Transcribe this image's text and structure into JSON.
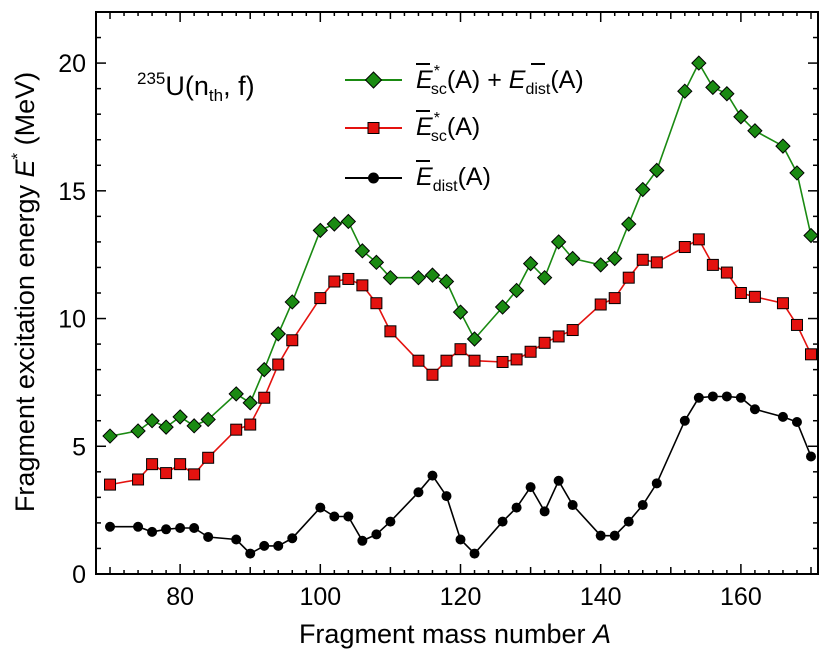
{
  "chart_data": {
    "type": "line",
    "annotation": {
      "mass": "235",
      "symbol": "U(n",
      "sub": "th",
      "rest": ", f)"
    },
    "xlabel": {
      "text": "Fragment mass number ",
      "italic": "A"
    },
    "ylabel": {
      "text": "Fragment excitation energy ",
      "italic": "E",
      "sup": "*",
      "unit": " (MeV)"
    },
    "xlim": [
      68,
      171
    ],
    "ylim": [
      0,
      22
    ],
    "xticks": [
      80,
      100,
      120,
      140,
      160
    ],
    "yticks": [
      0,
      5,
      10,
      15,
      20
    ],
    "series": [
      {
        "name": "E_sc(A) + E_dist(A)",
        "legend": {
          "e1": "E",
          "sup1": "*",
          "sub1": "sc",
          "mid": "(A) + ",
          "e2": "E",
          "sub2": "dist",
          "end": "(A)"
        },
        "color": "#1a8a12",
        "marker": "diamond",
        "x": [
          70,
          74,
          76,
          78,
          80,
          82,
          84,
          88,
          90,
          92,
          94,
          96,
          100,
          102,
          104,
          106,
          108,
          110,
          114,
          116,
          118,
          120,
          122,
          126,
          128,
          130,
          132,
          134,
          136,
          140,
          142,
          144,
          146,
          148,
          152,
          154,
          156,
          158,
          160,
          162,
          166,
          168,
          170
        ],
        "values": [
          5.4,
          5.6,
          6.0,
          5.75,
          6.15,
          5.8,
          6.05,
          7.05,
          6.7,
          8.0,
          9.4,
          10.65,
          13.45,
          13.7,
          13.8,
          12.65,
          12.2,
          11.6,
          11.6,
          11.7,
          11.45,
          10.25,
          9.2,
          10.45,
          11.1,
          12.15,
          11.6,
          13.0,
          12.35,
          12.1,
          12.35,
          13.7,
          15.05,
          15.8,
          18.9,
          20.0,
          19.05,
          18.8,
          17.9,
          17.35,
          16.75,
          15.7,
          13.25
        ]
      },
      {
        "name": "E_sc(A)",
        "legend": {
          "e1": "E",
          "sup1": "*",
          "sub1": "sc",
          "end": "(A)"
        },
        "color": "#e4120f",
        "marker": "square",
        "x": [
          70,
          74,
          76,
          78,
          80,
          82,
          84,
          88,
          90,
          92,
          94,
          96,
          100,
          102,
          104,
          106,
          108,
          110,
          114,
          116,
          118,
          120,
          122,
          126,
          128,
          130,
          132,
          134,
          136,
          140,
          142,
          144,
          146,
          148,
          152,
          154,
          156,
          158,
          160,
          162,
          166,
          168,
          170
        ],
        "values": [
          3.5,
          3.7,
          4.3,
          3.95,
          4.3,
          3.9,
          4.55,
          5.65,
          5.85,
          6.9,
          8.2,
          9.15,
          10.8,
          11.45,
          11.55,
          11.3,
          10.6,
          9.5,
          8.35,
          7.8,
          8.35,
          8.8,
          8.35,
          8.3,
          8.4,
          8.7,
          9.05,
          9.3,
          9.55,
          10.55,
          10.8,
          11.6,
          12.3,
          12.2,
          12.8,
          13.1,
          12.1,
          11.8,
          11.0,
          10.85,
          10.6,
          9.75,
          8.6
        ]
      },
      {
        "name": "E_dist(A)",
        "legend": {
          "e1": "E",
          "sub1": "dist",
          "end": "(A)"
        },
        "color": "#000000",
        "marker": "circle",
        "x": [
          70,
          74,
          76,
          78,
          80,
          82,
          84,
          88,
          90,
          92,
          94,
          96,
          100,
          102,
          104,
          106,
          108,
          110,
          114,
          116,
          118,
          120,
          122,
          126,
          128,
          130,
          132,
          134,
          136,
          140,
          142,
          144,
          146,
          148,
          152,
          154,
          156,
          158,
          160,
          162,
          166,
          168,
          170
        ],
        "values": [
          1.85,
          1.85,
          1.65,
          1.75,
          1.8,
          1.8,
          1.45,
          1.35,
          0.8,
          1.1,
          1.1,
          1.4,
          2.6,
          2.25,
          2.25,
          1.3,
          1.55,
          2.05,
          3.2,
          3.85,
          3.05,
          1.35,
          0.8,
          2.05,
          2.6,
          3.4,
          2.45,
          3.65,
          2.7,
          1.5,
          1.5,
          2.05,
          2.7,
          3.55,
          6.0,
          6.9,
          6.95,
          6.95,
          6.9,
          6.45,
          6.15,
          5.95,
          4.6
        ]
      }
    ]
  }
}
